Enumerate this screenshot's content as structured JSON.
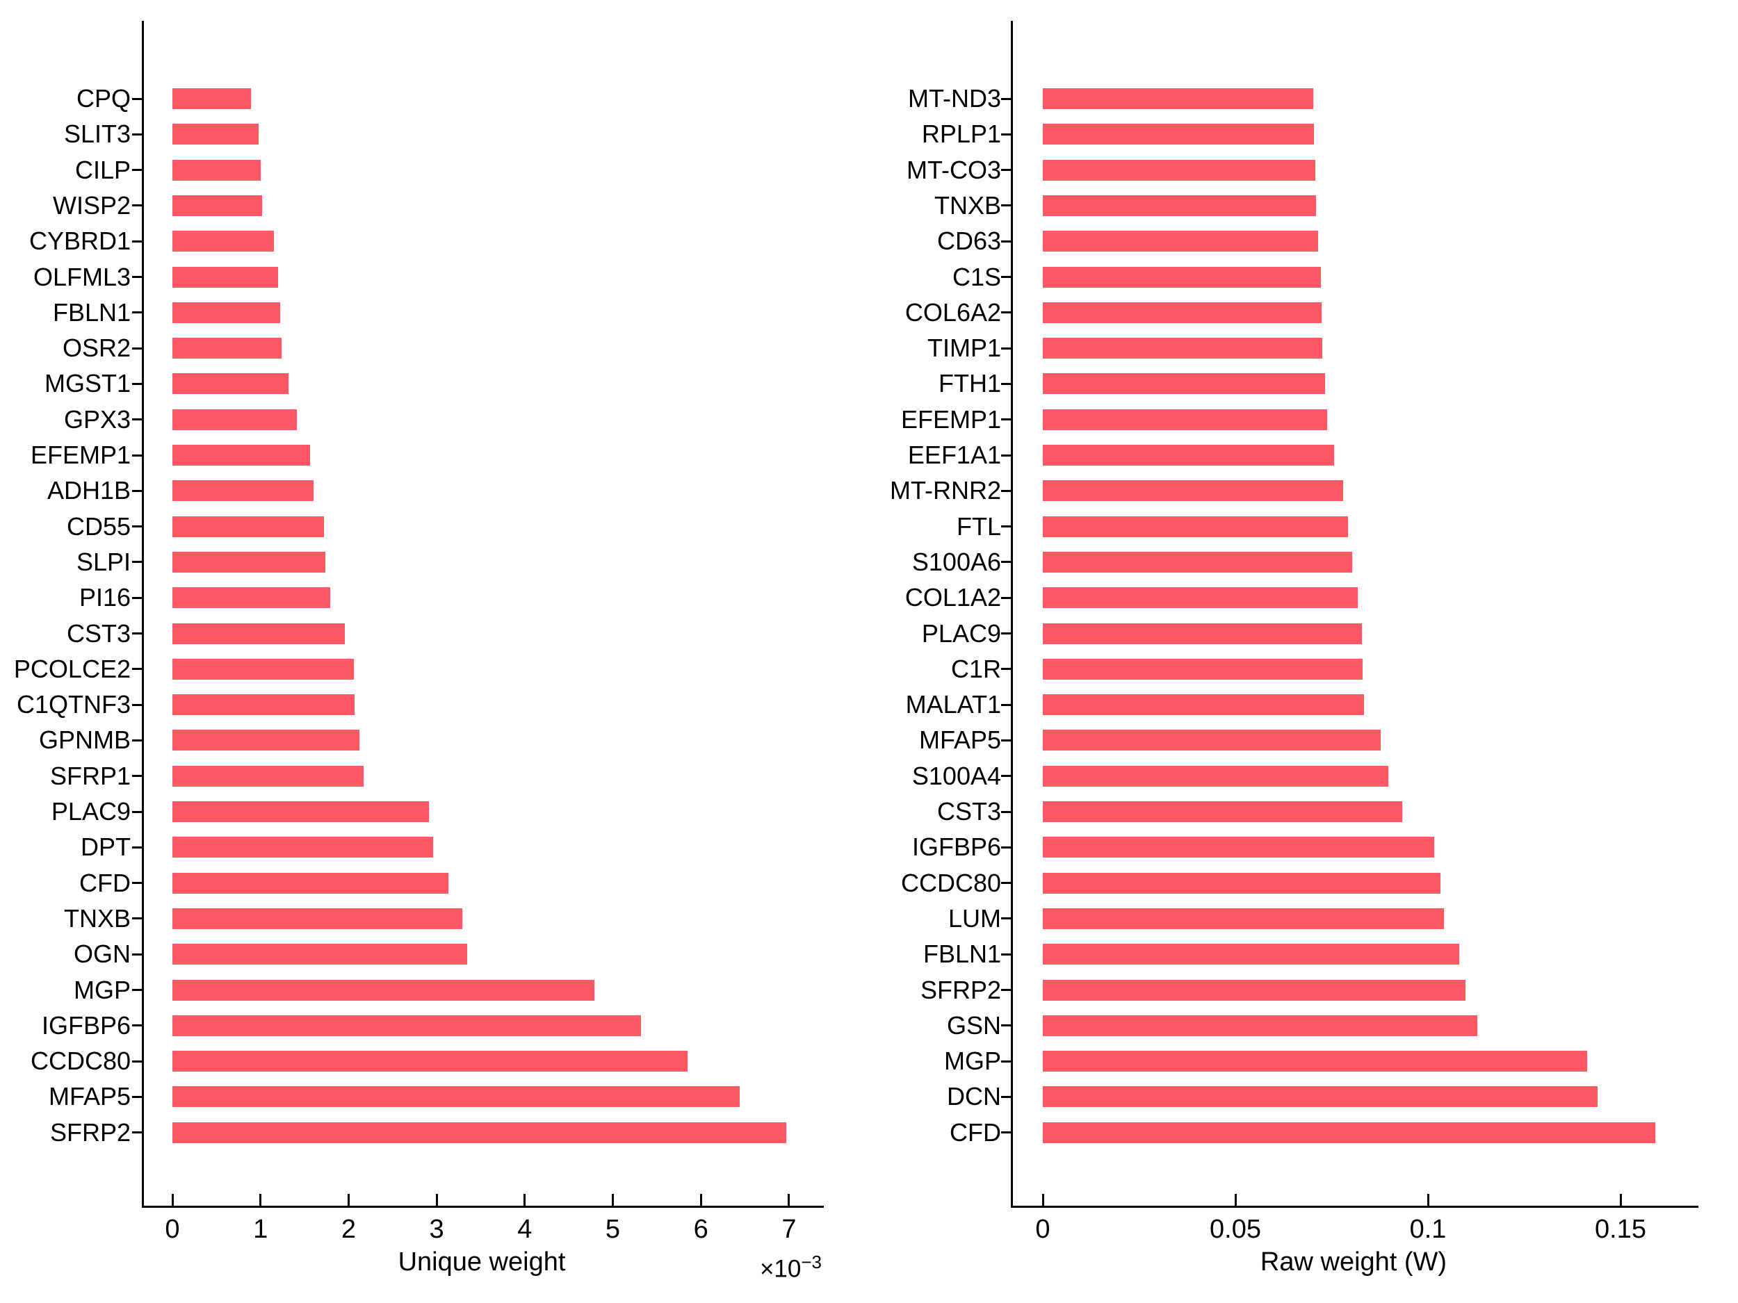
{
  "page": {
    "background": "#ffffff"
  },
  "chart_data": [
    {
      "type": "bar",
      "orientation": "horizontal",
      "title": "",
      "xlabel": "Unique weight",
      "x_offset_base": "×10",
      "x_offset_exp": "−3",
      "values_unit": "×10⁻³",
      "x_ticks": [
        0,
        1,
        2,
        3,
        4,
        5,
        6,
        7
      ],
      "x_tick_labels": [
        "0",
        "1",
        "2",
        "3",
        "4",
        "5",
        "6",
        "7"
      ],
      "xlim": [
        -0.35,
        7.37
      ],
      "grid": false,
      "legend": "none",
      "bar_color": "#FB5A64",
      "categories": [
        "CPQ",
        "SLIT3",
        "CILP",
        "WISP2",
        "CYBRD1",
        "OLFML3",
        "FBLN1",
        "OSR2",
        "MGST1",
        "GPX3",
        "EFEMP1",
        "ADH1B",
        "CD55",
        "SLPI",
        "PI16",
        "CST3",
        "PCOLCE2",
        "C1QTNF3",
        "GPNMB",
        "SFRP1",
        "PLAC9",
        "DPT",
        "CFD",
        "TNXB",
        "OGN",
        "MGP",
        "IGFBP6",
        "CCDC80",
        "MFAP5",
        "SFRP2"
      ],
      "values": [
        0.89,
        0.98,
        1.0,
        1.02,
        1.15,
        1.2,
        1.22,
        1.24,
        1.32,
        1.41,
        1.56,
        1.6,
        1.72,
        1.74,
        1.79,
        1.96,
        2.06,
        2.07,
        2.12,
        2.17,
        2.91,
        2.96,
        3.13,
        3.29,
        3.35,
        4.79,
        5.32,
        5.85,
        6.44,
        6.97
      ]
    },
    {
      "type": "bar",
      "orientation": "horizontal",
      "title": "",
      "xlabel": "Raw weight (W)",
      "x_offset_base": "",
      "x_offset_exp": "",
      "values_unit": "W",
      "x_ticks": [
        0,
        0.05,
        0.1,
        0.15
      ],
      "x_tick_labels": [
        "0",
        "0.05",
        "0.1",
        "0.15"
      ],
      "xlim": [
        -0.0083,
        0.1696
      ],
      "grid": false,
      "legend": "none",
      "bar_color": "#FB5A64",
      "categories": [
        "MT-ND3",
        "RPLP1",
        "MT-CO3",
        "TNXB",
        "CD63",
        "C1S",
        "COL6A2",
        "TIMP1",
        "FTH1",
        "EFEMP1",
        "EEF1A1",
        "MT-RNR2",
        "FTL",
        "S100A6",
        "COL1A2",
        "PLAC9",
        "C1R",
        "MALAT1",
        "MFAP5",
        "S100A4",
        "CST3",
        "IGFBP6",
        "CCDC80",
        "LUM",
        "FBLN1",
        "SFRP2",
        "GSN",
        "MGP",
        "DCN",
        "CFD"
      ],
      "values": [
        0.0703,
        0.0704,
        0.0708,
        0.071,
        0.0715,
        0.0722,
        0.0724,
        0.0725,
        0.0733,
        0.0739,
        0.0757,
        0.0779,
        0.0792,
        0.0804,
        0.0818,
        0.0828,
        0.0831,
        0.0834,
        0.0878,
        0.0898,
        0.0933,
        0.1016,
        0.1032,
        0.1041,
        0.1081,
        0.1098,
        0.1128,
        0.1413,
        0.1441,
        0.159
      ]
    }
  ]
}
